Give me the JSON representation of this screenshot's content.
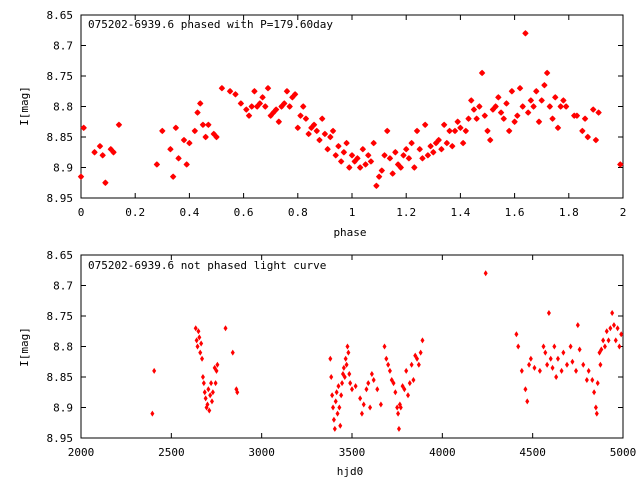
{
  "chart_data": [
    {
      "type": "scatter",
      "title": "075202-6939.6 phased with P=179.60day",
      "xlabel": "phase",
      "ylabel": "I[mag]",
      "xlim": [
        0,
        2
      ],
      "ylim": [
        8.95,
        8.65
      ],
      "y_inverted": true,
      "xticks": [
        "0",
        "0.2",
        "0.4",
        "0.6",
        "0.8",
        "1",
        "1.2",
        "1.4",
        "1.6",
        "1.8",
        "2"
      ],
      "yticks": [
        "8.65",
        "8.7",
        "8.75",
        "8.8",
        "8.85",
        "8.9",
        "8.95"
      ],
      "marker_color": "#ff0000",
      "marker": "filled-star",
      "grid": false,
      "points": [
        [
          0.0,
          8.915
        ],
        [
          0.01,
          8.835
        ],
        [
          0.05,
          8.875
        ],
        [
          0.07,
          8.865
        ],
        [
          0.08,
          8.88
        ],
        [
          0.09,
          8.925
        ],
        [
          0.11,
          8.87
        ],
        [
          0.12,
          8.875
        ],
        [
          0.14,
          8.83
        ],
        [
          0.28,
          8.895
        ],
        [
          0.3,
          8.84
        ],
        [
          0.33,
          8.87
        ],
        [
          0.34,
          8.915
        ],
        [
          0.35,
          8.835
        ],
        [
          0.36,
          8.885
        ],
        [
          0.38,
          8.855
        ],
        [
          0.39,
          8.895
        ],
        [
          0.4,
          8.86
        ],
        [
          0.42,
          8.84
        ],
        [
          0.43,
          8.81
        ],
        [
          0.44,
          8.795
        ],
        [
          0.45,
          8.83
        ],
        [
          0.46,
          8.85
        ],
        [
          0.47,
          8.83
        ],
        [
          0.49,
          8.845
        ],
        [
          0.5,
          8.85
        ],
        [
          0.52,
          8.77
        ],
        [
          0.55,
          8.775
        ],
        [
          0.57,
          8.78
        ],
        [
          0.59,
          8.795
        ],
        [
          0.61,
          8.805
        ],
        [
          0.62,
          8.815
        ],
        [
          0.63,
          8.8
        ],
        [
          0.64,
          8.775
        ],
        [
          0.65,
          8.8
        ],
        [
          0.66,
          8.795
        ],
        [
          0.67,
          8.785
        ],
        [
          0.68,
          8.8
        ],
        [
          0.69,
          8.77
        ],
        [
          0.7,
          8.815
        ],
        [
          0.71,
          8.81
        ],
        [
          0.72,
          8.805
        ],
        [
          0.73,
          8.825
        ],
        [
          0.74,
          8.8
        ],
        [
          0.75,
          8.795
        ],
        [
          0.76,
          8.775
        ],
        [
          0.77,
          8.8
        ],
        [
          0.78,
          8.785
        ],
        [
          0.79,
          8.78
        ],
        [
          0.8,
          8.835
        ],
        [
          0.81,
          8.815
        ],
        [
          0.82,
          8.8
        ],
        [
          0.83,
          8.82
        ],
        [
          0.84,
          8.845
        ],
        [
          0.85,
          8.835
        ],
        [
          0.86,
          8.83
        ],
        [
          0.87,
          8.84
        ],
        [
          0.88,
          8.855
        ],
        [
          0.89,
          8.82
        ],
        [
          0.9,
          8.845
        ],
        [
          0.91,
          8.87
        ],
        [
          0.92,
          8.85
        ],
        [
          0.93,
          8.84
        ],
        [
          0.94,
          8.88
        ],
        [
          0.95,
          8.865
        ],
        [
          0.96,
          8.89
        ],
        [
          0.97,
          8.875
        ],
        [
          0.98,
          8.86
        ],
        [
          0.99,
          8.9
        ],
        [
          1.0,
          8.88
        ],
        [
          1.01,
          8.89
        ],
        [
          1.02,
          8.885
        ],
        [
          1.03,
          8.9
        ],
        [
          1.04,
          8.87
        ],
        [
          1.05,
          8.895
        ],
        [
          1.06,
          8.88
        ],
        [
          1.07,
          8.89
        ],
        [
          1.08,
          8.86
        ],
        [
          1.09,
          8.93
        ],
        [
          1.1,
          8.915
        ],
        [
          1.11,
          8.905
        ],
        [
          1.12,
          8.88
        ],
        [
          1.13,
          8.84
        ],
        [
          1.14,
          8.885
        ],
        [
          1.15,
          8.91
        ],
        [
          1.16,
          8.875
        ],
        [
          1.17,
          8.895
        ],
        [
          1.18,
          8.9
        ],
        [
          1.19,
          8.88
        ],
        [
          1.2,
          8.87
        ],
        [
          1.21,
          8.885
        ],
        [
          1.22,
          8.86
        ],
        [
          1.23,
          8.9
        ],
        [
          1.24,
          8.84
        ],
        [
          1.25,
          8.87
        ],
        [
          1.26,
          8.885
        ],
        [
          1.27,
          8.83
        ],
        [
          1.28,
          8.88
        ],
        [
          1.29,
          8.865
        ],
        [
          1.3,
          8.875
        ],
        [
          1.31,
          8.86
        ],
        [
          1.32,
          8.855
        ],
        [
          1.33,
          8.87
        ],
        [
          1.34,
          8.83
        ],
        [
          1.35,
          8.86
        ],
        [
          1.36,
          8.84
        ],
        [
          1.37,
          8.865
        ],
        [
          1.38,
          8.84
        ],
        [
          1.39,
          8.825
        ],
        [
          1.4,
          8.835
        ],
        [
          1.41,
          8.86
        ],
        [
          1.42,
          8.84
        ],
        [
          1.43,
          8.82
        ],
        [
          1.44,
          8.79
        ],
        [
          1.45,
          8.805
        ],
        [
          1.46,
          8.82
        ],
        [
          1.47,
          8.8
        ],
        [
          1.48,
          8.745
        ],
        [
          1.49,
          8.815
        ],
        [
          1.5,
          8.84
        ],
        [
          1.51,
          8.855
        ],
        [
          1.52,
          8.805
        ],
        [
          1.53,
          8.8
        ],
        [
          1.54,
          8.785
        ],
        [
          1.55,
          8.81
        ],
        [
          1.56,
          8.82
        ],
        [
          1.57,
          8.795
        ],
        [
          1.58,
          8.84
        ],
        [
          1.59,
          8.775
        ],
        [
          1.6,
          8.825
        ],
        [
          1.61,
          8.815
        ],
        [
          1.62,
          8.77
        ],
        [
          1.63,
          8.8
        ],
        [
          1.64,
          8.68
        ],
        [
          1.65,
          8.81
        ],
        [
          1.66,
          8.79
        ],
        [
          1.67,
          8.8
        ],
        [
          1.68,
          8.775
        ],
        [
          1.69,
          8.825
        ],
        [
          1.7,
          8.79
        ],
        [
          1.71,
          8.765
        ],
        [
          1.72,
          8.745
        ],
        [
          1.73,
          8.8
        ],
        [
          1.74,
          8.82
        ],
        [
          1.75,
          8.785
        ],
        [
          1.76,
          8.835
        ],
        [
          1.77,
          8.8
        ],
        [
          1.78,
          8.79
        ],
        [
          1.79,
          8.8
        ],
        [
          1.82,
          8.815
        ],
        [
          1.83,
          8.815
        ],
        [
          1.85,
          8.84
        ],
        [
          1.86,
          8.82
        ],
        [
          1.87,
          8.85
        ],
        [
          1.89,
          8.805
        ],
        [
          1.9,
          8.855
        ],
        [
          1.91,
          8.81
        ],
        [
          1.99,
          8.895
        ]
      ]
    },
    {
      "type": "scatter",
      "title": "075202-6939.6 not phased light curve",
      "xlabel": "hjd0",
      "ylabel": "I[mag]",
      "xlim": [
        2000,
        5000
      ],
      "ylim": [
        8.95,
        8.65
      ],
      "y_inverted": true,
      "xticks": [
        "2000",
        "2500",
        "3000",
        "3500",
        "4000",
        "4500",
        "5000"
      ],
      "yticks": [
        "8.65",
        "8.7",
        "8.75",
        "8.8",
        "8.85",
        "8.9",
        "8.95"
      ],
      "marker_color": "#ff0000",
      "marker": "diamond",
      "grid": false,
      "points": [
        [
          2395,
          8.91
        ],
        [
          2405,
          8.84
        ],
        [
          2635,
          8.77
        ],
        [
          2640,
          8.79
        ],
        [
          2645,
          8.8
        ],
        [
          2650,
          8.775
        ],
        [
          2655,
          8.785
        ],
        [
          2660,
          8.81
        ],
        [
          2665,
          8.795
        ],
        [
          2670,
          8.82
        ],
        [
          2675,
          8.85
        ],
        [
          2680,
          8.86
        ],
        [
          2685,
          8.875
        ],
        [
          2690,
          8.885
        ],
        [
          2695,
          8.9
        ],
        [
          2700,
          8.895
        ],
        [
          2705,
          8.87
        ],
        [
          2710,
          8.905
        ],
        [
          2715,
          8.88
        ],
        [
          2720,
          8.86
        ],
        [
          2725,
          8.89
        ],
        [
          2730,
          8.875
        ],
        [
          2740,
          8.835
        ],
        [
          2745,
          8.86
        ],
        [
          2750,
          8.84
        ],
        [
          2755,
          8.83
        ],
        [
          2800,
          8.77
        ],
        [
          2840,
          8.81
        ],
        [
          2860,
          8.87
        ],
        [
          2865,
          8.875
        ],
        [
          3380,
          8.82
        ],
        [
          3385,
          8.85
        ],
        [
          3390,
          8.88
        ],
        [
          3395,
          8.9
        ],
        [
          3400,
          8.92
        ],
        [
          3405,
          8.935
        ],
        [
          3410,
          8.89
        ],
        [
          3415,
          8.875
        ],
        [
          3420,
          8.91
        ],
        [
          3425,
          8.865
        ],
        [
          3430,
          8.9
        ],
        [
          3435,
          8.93
        ],
        [
          3440,
          8.88
        ],
        [
          3445,
          8.86
        ],
        [
          3450,
          8.845
        ],
        [
          3455,
          8.835
        ],
        [
          3460,
          8.85
        ],
        [
          3465,
          8.82
        ],
        [
          3470,
          8.83
        ],
        [
          3475,
          8.8
        ],
        [
          3480,
          8.81
        ],
        [
          3485,
          8.845
        ],
        [
          3490,
          8.86
        ],
        [
          3500,
          8.87
        ],
        [
          3520,
          8.865
        ],
        [
          3545,
          8.885
        ],
        [
          3555,
          8.91
        ],
        [
          3565,
          8.895
        ],
        [
          3580,
          8.87
        ],
        [
          3590,
          8.86
        ],
        [
          3600,
          8.9
        ],
        [
          3610,
          8.845
        ],
        [
          3620,
          8.855
        ],
        [
          3640,
          8.87
        ],
        [
          3660,
          8.895
        ],
        [
          3680,
          8.8
        ],
        [
          3690,
          8.82
        ],
        [
          3700,
          8.83
        ],
        [
          3710,
          8.84
        ],
        [
          3720,
          8.855
        ],
        [
          3730,
          8.86
        ],
        [
          3740,
          8.875
        ],
        [
          3750,
          8.9
        ],
        [
          3755,
          8.91
        ],
        [
          3760,
          8.935
        ],
        [
          3765,
          8.895
        ],
        [
          3770,
          8.9
        ],
        [
          3780,
          8.865
        ],
        [
          3790,
          8.87
        ],
        [
          3800,
          8.84
        ],
        [
          3810,
          8.88
        ],
        [
          3820,
          8.86
        ],
        [
          3830,
          8.83
        ],
        [
          3840,
          8.855
        ],
        [
          3850,
          8.815
        ],
        [
          3860,
          8.82
        ],
        [
          3870,
          8.83
        ],
        [
          3880,
          8.81
        ],
        [
          3890,
          8.79
        ],
        [
          4240,
          8.68
        ],
        [
          4410,
          8.78
        ],
        [
          4420,
          8.8
        ],
        [
          4440,
          8.84
        ],
        [
          4460,
          8.87
        ],
        [
          4470,
          8.89
        ],
        [
          4480,
          8.83
        ],
        [
          4490,
          8.82
        ],
        [
          4510,
          8.835
        ],
        [
          4540,
          8.84
        ],
        [
          4560,
          8.8
        ],
        [
          4570,
          8.81
        ],
        [
          4580,
          8.83
        ],
        [
          4590,
          8.745
        ],
        [
          4600,
          8.82
        ],
        [
          4610,
          8.835
        ],
        [
          4620,
          8.8
        ],
        [
          4630,
          8.85
        ],
        [
          4640,
          8.82
        ],
        [
          4660,
          8.84
        ],
        [
          4670,
          8.81
        ],
        [
          4690,
          8.83
        ],
        [
          4710,
          8.8
        ],
        [
          4720,
          8.825
        ],
        [
          4740,
          8.84
        ],
        [
          4750,
          8.765
        ],
        [
          4760,
          8.805
        ],
        [
          4780,
          8.83
        ],
        [
          4800,
          8.855
        ],
        [
          4810,
          8.84
        ],
        [
          4830,
          8.855
        ],
        [
          4840,
          8.875
        ],
        [
          4850,
          8.9
        ],
        [
          4855,
          8.91
        ],
        [
          4860,
          8.86
        ],
        [
          4870,
          8.81
        ],
        [
          4875,
          8.83
        ],
        [
          4880,
          8.805
        ],
        [
          4890,
          8.79
        ],
        [
          4900,
          8.8
        ],
        [
          4910,
          8.775
        ],
        [
          4920,
          8.79
        ],
        [
          4930,
          8.77
        ],
        [
          4940,
          8.745
        ],
        [
          4950,
          8.765
        ],
        [
          4960,
          8.79
        ],
        [
          4970,
          8.77
        ],
        [
          4980,
          8.8
        ],
        [
          4990,
          8.78
        ]
      ]
    }
  ]
}
